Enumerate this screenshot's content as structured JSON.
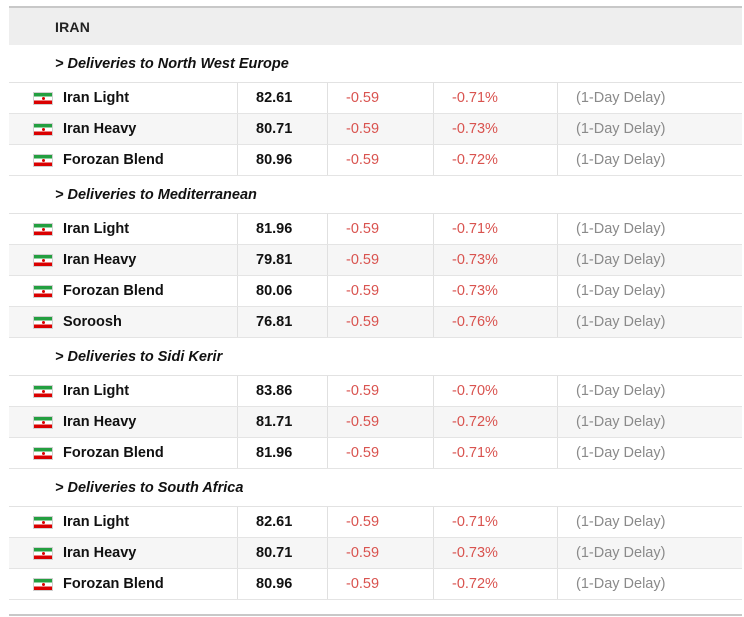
{
  "country": "IRAN",
  "sections": [
    {
      "title": "> Deliveries to North West Europe",
      "rows": [
        {
          "name": "Iran Light",
          "price": "82.61",
          "change": "-0.59",
          "pct": "-0.71%",
          "delay": "(1-Day Delay)"
        },
        {
          "name": "Iran Heavy",
          "price": "80.71",
          "change": "-0.59",
          "pct": "-0.73%",
          "delay": "(1-Day Delay)"
        },
        {
          "name": "Forozan Blend",
          "price": "80.96",
          "change": "-0.59",
          "pct": "-0.72%",
          "delay": "(1-Day Delay)"
        }
      ]
    },
    {
      "title": "> Deliveries to Mediterranean",
      "rows": [
        {
          "name": "Iran Light",
          "price": "81.96",
          "change": "-0.59",
          "pct": "-0.71%",
          "delay": "(1-Day Delay)"
        },
        {
          "name": "Iran Heavy",
          "price": "79.81",
          "change": "-0.59",
          "pct": "-0.73%",
          "delay": "(1-Day Delay)"
        },
        {
          "name": "Forozan Blend",
          "price": "80.06",
          "change": "-0.59",
          "pct": "-0.73%",
          "delay": "(1-Day Delay)"
        },
        {
          "name": "Soroosh",
          "price": "76.81",
          "change": "-0.59",
          "pct": "-0.76%",
          "delay": "(1-Day Delay)"
        }
      ]
    },
    {
      "title": "> Deliveries to Sidi Kerir",
      "rows": [
        {
          "name": "Iran Light",
          "price": "83.86",
          "change": "-0.59",
          "pct": "-0.70%",
          "delay": "(1-Day Delay)"
        },
        {
          "name": "Iran Heavy",
          "price": "81.71",
          "change": "-0.59",
          "pct": "-0.72%",
          "delay": "(1-Day Delay)"
        },
        {
          "name": "Forozan Blend",
          "price": "81.96",
          "change": "-0.59",
          "pct": "-0.71%",
          "delay": "(1-Day Delay)"
        }
      ]
    },
    {
      "title": "> Deliveries to South Africa",
      "rows": [
        {
          "name": "Iran Light",
          "price": "82.61",
          "change": "-0.59",
          "pct": "-0.71%",
          "delay": "(1-Day Delay)"
        },
        {
          "name": "Iran Heavy",
          "price": "80.71",
          "change": "-0.59",
          "pct": "-0.73%",
          "delay": "(1-Day Delay)"
        },
        {
          "name": "Forozan Blend",
          "price": "80.96",
          "change": "-0.59",
          "pct": "-0.72%",
          "delay": "(1-Day Delay)"
        }
      ]
    }
  ],
  "icons": {
    "row_flag": "iran-flag-icon"
  },
  "colors": {
    "negative": "#d9534f",
    "delay": "#8a8a8a",
    "header_bg": "#eeeeee"
  }
}
